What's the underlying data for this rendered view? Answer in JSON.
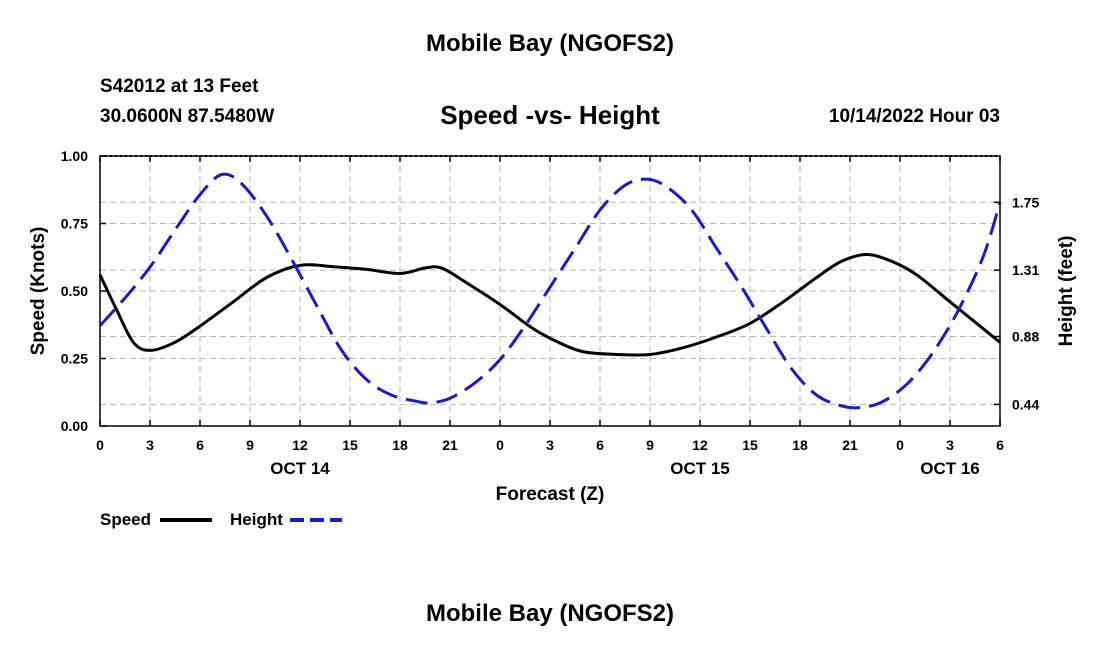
{
  "header": {
    "title": "Mobile Bay (NGOFS2)",
    "station": "S42012 at 13 Feet",
    "coords": "30.0600N  87.5480W",
    "subtitle": "Speed -vs- Height",
    "timestamp": "10/14/2022 Hour 03"
  },
  "footer": {
    "title": "Mobile Bay (NGOFS2)"
  },
  "colors": {
    "speed": "#000000",
    "height": "#1a1acc",
    "grid": "#b8b8b8"
  },
  "chart_data": {
    "type": "line",
    "xlabel": "Forecast (Z)",
    "ylabel_left": "Speed (Knots)",
    "ylabel_right": "Height (feet)",
    "x_range": [
      0,
      54
    ],
    "ylim_left": [
      0,
      1.0
    ],
    "ylim_right": [
      0.3,
      2.05
    ],
    "grid": true,
    "x_ticks": [
      {
        "x": 0,
        "label": "0"
      },
      {
        "x": 3,
        "label": "3"
      },
      {
        "x": 6,
        "label": "6"
      },
      {
        "x": 9,
        "label": "9"
      },
      {
        "x": 12,
        "label": "12"
      },
      {
        "x": 15,
        "label": "15"
      },
      {
        "x": 18,
        "label": "18"
      },
      {
        "x": 21,
        "label": "21"
      },
      {
        "x": 24,
        "label": "0"
      },
      {
        "x": 27,
        "label": "3"
      },
      {
        "x": 30,
        "label": "6"
      },
      {
        "x": 33,
        "label": "9"
      },
      {
        "x": 36,
        "label": "12"
      },
      {
        "x": 39,
        "label": "15"
      },
      {
        "x": 42,
        "label": "18"
      },
      {
        "x": 45,
        "label": "21"
      },
      {
        "x": 48,
        "label": "0"
      },
      {
        "x": 51,
        "label": "3"
      },
      {
        "x": 54,
        "label": "6"
      }
    ],
    "date_labels": [
      {
        "x": 12,
        "label": "OCT 14"
      },
      {
        "x": 36,
        "label": "OCT 15"
      },
      {
        "x": 51,
        "label": "OCT 16"
      }
    ],
    "y_ticks_left": [
      {
        "value": 0,
        "label": "0.00"
      },
      {
        "value": 0.25,
        "label": "0.25"
      },
      {
        "value": 0.5,
        "label": "0.50"
      },
      {
        "value": 0.75,
        "label": "0.75"
      },
      {
        "value": 1.0,
        "label": "1.00"
      }
    ],
    "y_ticks_right": [
      {
        "value": 0.44,
        "label": "0.44"
      },
      {
        "value": 0.88,
        "label": "0.88"
      },
      {
        "value": 1.31,
        "label": "1.31"
      },
      {
        "value": 1.75,
        "label": "1.75"
      }
    ],
    "series": [
      {
        "name": "Speed",
        "axis": "left",
        "style": "solid",
        "x": [
          0,
          1,
          2,
          3,
          4.5,
          6,
          8,
          10,
          12,
          14,
          16,
          18,
          19.5,
          20.5,
          22,
          24,
          26,
          27.5,
          29,
          31,
          33,
          35,
          37,
          39,
          41,
          43,
          44.5,
          46,
          47.5,
          49,
          51,
          53,
          54
        ],
        "values": [
          0.56,
          0.43,
          0.31,
          0.28,
          0.31,
          0.37,
          0.46,
          0.55,
          0.595,
          0.59,
          0.58,
          0.565,
          0.585,
          0.585,
          0.53,
          0.45,
          0.36,
          0.31,
          0.275,
          0.265,
          0.265,
          0.29,
          0.33,
          0.38,
          0.46,
          0.55,
          0.61,
          0.635,
          0.61,
          0.56,
          0.46,
          0.36,
          0.31
        ]
      },
      {
        "name": "Height",
        "axis": "right",
        "style": "dashed",
        "x": [
          0,
          1.5,
          3,
          4.5,
          6,
          7.3,
          8.5,
          10,
          11.5,
          13,
          14.5,
          16,
          17.5,
          19,
          19.8,
          21,
          22.5,
          24,
          25.5,
          27,
          28.5,
          30,
          31.5,
          32.8,
          34,
          35.5,
          37,
          38.5,
          40,
          41.5,
          43,
          44.5,
          45.7,
          47,
          48.5,
          50,
          51.5,
          53,
          54
        ],
        "values": [
          0.95,
          1.13,
          1.33,
          1.57,
          1.8,
          1.93,
          1.87,
          1.66,
          1.38,
          1.08,
          0.79,
          0.6,
          0.5,
          0.46,
          0.45,
          0.48,
          0.58,
          0.73,
          0.95,
          1.2,
          1.45,
          1.7,
          1.86,
          1.9,
          1.85,
          1.7,
          1.45,
          1.2,
          0.93,
          0.67,
          0.5,
          0.43,
          0.42,
          0.46,
          0.58,
          0.78,
          1.05,
          1.4,
          1.75
        ]
      }
    ]
  }
}
